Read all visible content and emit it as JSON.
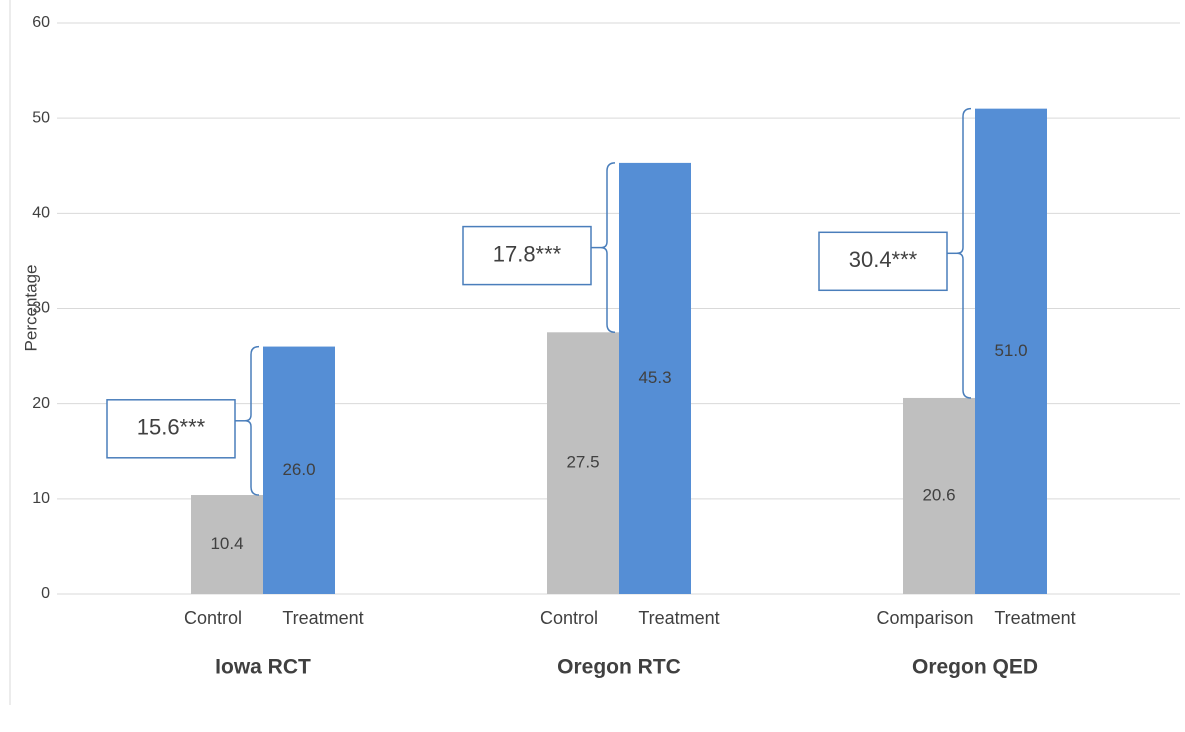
{
  "chart_data": {
    "type": "bar",
    "ylabel": "Percentage",
    "categories": [
      "Iowa RCT",
      "Oregon RTC",
      "Oregon QED"
    ],
    "series": [
      {
        "color": "#bfbfbf",
        "labels": [
          "Control",
          "Control",
          "Comparison"
        ],
        "values": [
          10.4,
          27.5,
          20.6
        ],
        "value_labels": [
          "10.4",
          "27.5",
          "20.6"
        ]
      },
      {
        "color": "#558ed5",
        "labels": [
          "Treatment",
          "Treatment",
          "Treatment"
        ],
        "values": [
          26,
          45.3,
          51
        ],
        "value_labels": [
          "26.0",
          "45.3",
          "51.0"
        ]
      }
    ],
    "annotations": [
      "15.6***",
      "17.8***",
      "30.4***"
    ],
    "ylim": [
      0,
      60
    ],
    "yticks": [
      0,
      10,
      20,
      30,
      40,
      50,
      60
    ],
    "grid": true
  }
}
